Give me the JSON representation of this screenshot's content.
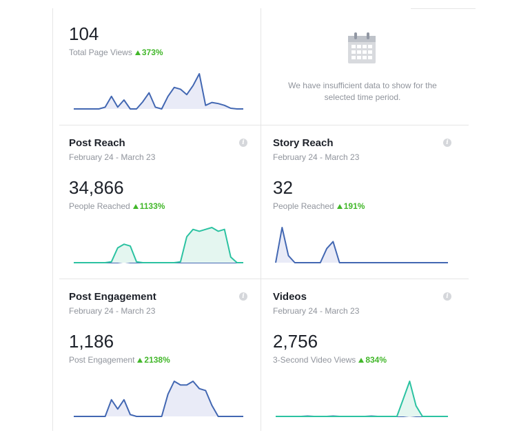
{
  "cards": {
    "page_views": {
      "value": "104",
      "metric_label": "Total Page Views",
      "delta": "373%",
      "series": [
        0,
        0,
        0,
        0,
        0,
        0.05,
        0.35,
        0.05,
        0.25,
        0,
        0,
        0.2,
        0.45,
        0.05,
        0,
        0.35,
        0.6,
        0.55,
        0.4,
        0.65,
        0.98,
        0.1,
        0.18,
        0.15,
        0.1,
        0.02,
        0,
        0
      ]
    },
    "no_data": {
      "message_line1": "We have insufficient data to show for the",
      "message_line2": "selected time period."
    },
    "post_reach": {
      "title": "Post Reach",
      "date_range": "February 24 - March 23",
      "value": "34,866",
      "metric_label": "People Reached",
      "delta": "1133%",
      "series_green": [
        0,
        0,
        0,
        0,
        0,
        0,
        0.05,
        0.8,
        1,
        0.9,
        0.05,
        0,
        0,
        0,
        0,
        0,
        0,
        0.05,
        1.4,
        1.8,
        1.7,
        1.8,
        1.9,
        1.7,
        1.8,
        0.3,
        0,
        0
      ],
      "series_blue": [
        0,
        0,
        0,
        0,
        0,
        0,
        0,
        0,
        0.05,
        0,
        0,
        0,
        0,
        0,
        0,
        0,
        0,
        0,
        0,
        0,
        0,
        0,
        0,
        0,
        0,
        0,
        0,
        0
      ]
    },
    "story_reach": {
      "title": "Story Reach",
      "date_range": "February 24 - March 23",
      "value": "32",
      "metric_label": "People Reached",
      "delta": "191%",
      "series": [
        0,
        1,
        0.2,
        0,
        0,
        0,
        0,
        0,
        0.4,
        0.6,
        0,
        0,
        0,
        0,
        0,
        0,
        0,
        0,
        0,
        0,
        0,
        0,
        0,
        0,
        0,
        0,
        0,
        0
      ]
    },
    "post_engagement": {
      "title": "Post Engagement",
      "date_range": "February 24 - March 23",
      "value": "1,186",
      "metric_label": "Post Engagement",
      "delta": "2138%",
      "series": [
        0,
        0,
        0,
        0,
        0,
        0,
        0.45,
        0.2,
        0.45,
        0.05,
        0,
        0,
        0,
        0,
        0,
        0.6,
        0.95,
        0.85,
        0.85,
        0.95,
        0.75,
        0.7,
        0.3,
        0,
        0,
        0,
        0,
        0
      ]
    },
    "videos": {
      "title": "Videos",
      "date_range": "February 24 - March 23",
      "value": "2,756",
      "metric_label": "3-Second Video Views",
      "delta": "834%",
      "series_green": [
        0,
        0,
        0,
        0,
        0,
        0,
        0,
        0,
        0,
        0,
        0,
        0,
        0,
        0,
        0,
        0,
        0,
        0,
        0,
        0,
        0.5,
        1,
        0.3,
        0,
        0,
        0,
        0,
        0
      ],
      "series_blue": [
        0,
        0,
        0,
        0,
        0,
        0.01,
        0,
        0,
        0,
        0.01,
        0,
        0,
        0,
        0,
        0,
        0.01,
        0,
        0,
        0,
        0,
        0,
        0.02,
        0,
        0,
        0,
        0,
        0,
        0
      ]
    }
  },
  "colors": {
    "blue": "#4267b2",
    "blue_fill": "#e9ebf7",
    "teal": "#2bc2a1",
    "teal_fill": "#e4f6f0",
    "positive": "#42b72a",
    "muted": "#90949c"
  }
}
